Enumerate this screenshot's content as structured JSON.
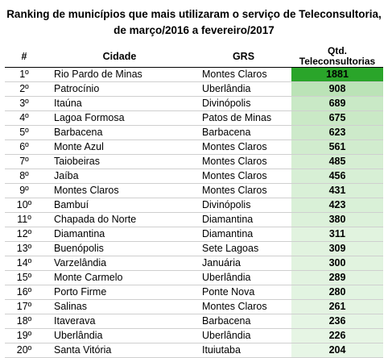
{
  "title_line1": "Ranking de municípios que mais utilizaram o serviço de Teleconsultoria,",
  "title_line2": "de março/2016 a fevereiro/2017",
  "headers": {
    "rank": "#",
    "city": "Cidade",
    "grs": "GRS",
    "qtd": "Qtd. Teleconsultorias"
  },
  "rows": [
    {
      "rank": "1º",
      "city": "Rio Pardo de Minas",
      "grs": "Montes Claros",
      "qtd": "1881",
      "level": 1.0
    },
    {
      "rank": "2º",
      "city": "Patrocínio",
      "grs": "Uberlândia",
      "qtd": "908",
      "level": 0.483
    },
    {
      "rank": "3º",
      "city": "Itaúna",
      "grs": "Divinópolis",
      "qtd": "689",
      "level": 0.366
    },
    {
      "rank": "4º",
      "city": "Lagoa Formosa",
      "grs": "Patos de Minas",
      "qtd": "675",
      "level": 0.359
    },
    {
      "rank": "5º",
      "city": "Barbacena",
      "grs": "Barbacena",
      "qtd": "623",
      "level": 0.331
    },
    {
      "rank": "6º",
      "city": "Monte Azul",
      "grs": "Montes Claros",
      "qtd": "561",
      "level": 0.298
    },
    {
      "rank": "7º",
      "city": "Taiobeiras",
      "grs": "Montes Claros",
      "qtd": "485",
      "level": 0.258
    },
    {
      "rank": "8º",
      "city": "Jaíba",
      "grs": "Montes Claros",
      "qtd": "456",
      "level": 0.242
    },
    {
      "rank": "9º",
      "city": "Montes Claros",
      "grs": "Montes Claros",
      "qtd": "431",
      "level": 0.229
    },
    {
      "rank": "10º",
      "city": "Bambuí",
      "grs": "Divinópolis",
      "qtd": "423",
      "level": 0.225
    },
    {
      "rank": "11º",
      "city": "Chapada do Norte",
      "grs": "Diamantina",
      "qtd": "380",
      "level": 0.202
    },
    {
      "rank": "12º",
      "city": "Diamantina",
      "grs": "Diamantina",
      "qtd": "311",
      "level": 0.165
    },
    {
      "rank": "13º",
      "city": "Buenópolis",
      "grs": "Sete Lagoas",
      "qtd": "309",
      "level": 0.164
    },
    {
      "rank": "14º",
      "city": "Varzelândia",
      "grs": "Januária",
      "qtd": "300",
      "level": 0.159
    },
    {
      "rank": "15º",
      "city": "Monte Carmelo",
      "grs": "Uberlândia",
      "qtd": "289",
      "level": 0.154
    },
    {
      "rank": "16º",
      "city": "Porto Firme",
      "grs": "Ponte Nova",
      "qtd": "280",
      "level": 0.149
    },
    {
      "rank": "17º",
      "city": "Salinas",
      "grs": "Montes Claros",
      "qtd": "261",
      "level": 0.139
    },
    {
      "rank": "18º",
      "city": "Itaverava",
      "grs": "Barbacena",
      "qtd": "236",
      "level": 0.125
    },
    {
      "rank": "19º",
      "city": "Uberlândia",
      "grs": "Uberlândia",
      "qtd": "226",
      "level": 0.12
    },
    {
      "rank": "20º",
      "city": "Santa Vitória",
      "grs": "Ituiutaba",
      "qtd": "204",
      "level": 0.108
    }
  ],
  "colors": {
    "scale_low": "#f4fbf3",
    "scale_mid": "#b9e2b5",
    "scale_high": "#2aa52a"
  }
}
